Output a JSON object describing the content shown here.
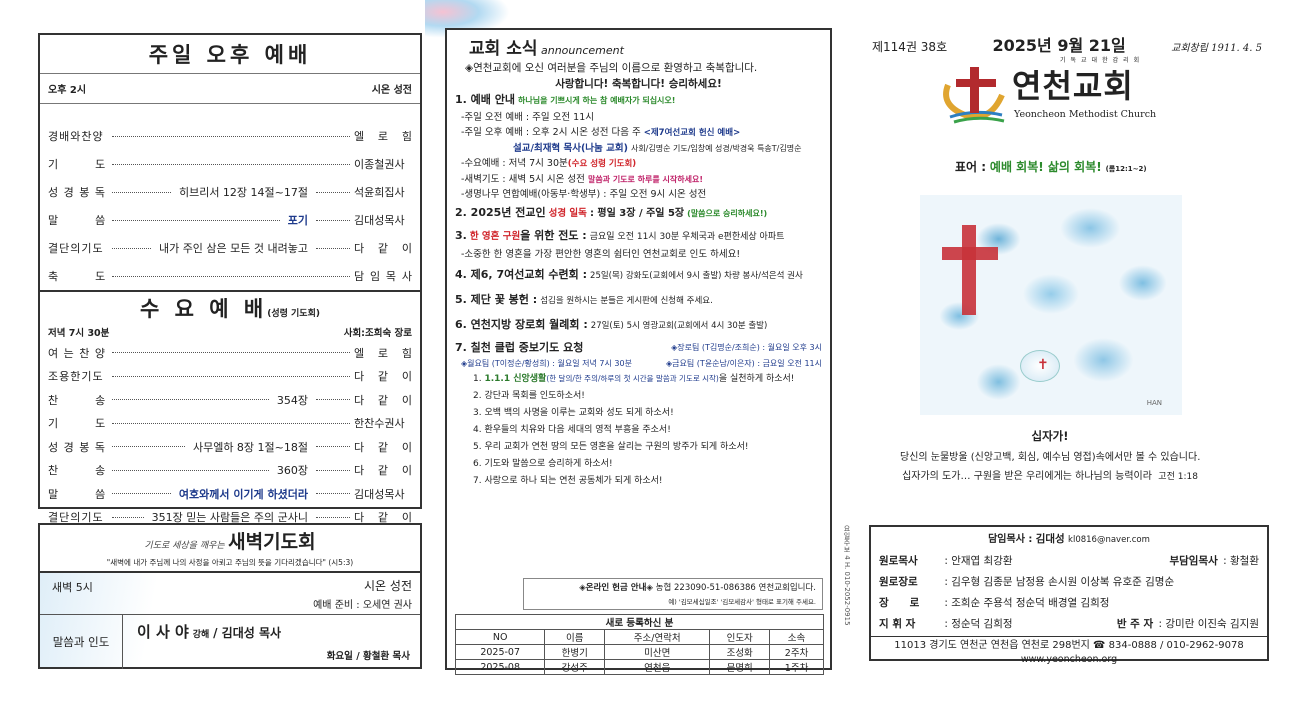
{
  "sunday_pm": {
    "title": "주일 오후 예배",
    "time": "오후 2시",
    "place": "시온 성전",
    "rows": [
      {
        "label": "경배와찬양",
        "middle": "",
        "who": "엘 로 힘"
      },
      {
        "label": "기　　　도",
        "middle": "",
        "who": "이종철권사"
      },
      {
        "label": "성 경 봉 독",
        "middle": "히브리서 12장 14절~17절",
        "who": "석윤희집사"
      },
      {
        "label": "말　　　씀",
        "middle": "포기",
        "who": "김대성목사",
        "highlight": true
      },
      {
        "label": "결단의기도",
        "middle": "내가 주인 삼은 모든 것 내려놓고",
        "who": "다 같 이"
      },
      {
        "label": "축　　　도",
        "middle": "",
        "who": "담 임 목 사"
      }
    ]
  },
  "wednesday": {
    "title": "수 요 예 배",
    "subtitle": "(성령 기도회)",
    "time": "저녁 7시 30분",
    "host": "사회:조희숙 장로",
    "rows": [
      {
        "label": "여 는 찬 양",
        "middle": "",
        "who": "엘 로 힘"
      },
      {
        "label": "조용한기도",
        "middle": "",
        "who": "다 같 이"
      },
      {
        "label": "찬　　　송",
        "middle": "354장",
        "who": "다 같 이"
      },
      {
        "label": "기　　　도",
        "middle": "",
        "who": "한찬수권사"
      },
      {
        "label": "성 경 봉 독",
        "middle": "사무엘하 8장 1절~18절",
        "who": "다 같 이"
      },
      {
        "label": "찬　　　송",
        "middle": "360장",
        "who": "다 같 이"
      },
      {
        "label": "말　　　씀",
        "middle": "여호와께서 이기게 하셨더라",
        "who": "김대성목사",
        "highlight": true
      },
      {
        "label": "결단의기도",
        "middle": "351장 믿는 사람들은 주의 군사니",
        "who": "다 같 이"
      }
    ]
  },
  "dawn": {
    "prefix": "기도로 세상을 깨우는",
    "title": "새벽기도회",
    "verse": "\"새벽에 내가 주님께 나의 사정을 아뢰고 주님의 뜻을 기다리겠습니다\" (시5:3)",
    "time": "새벽 5시",
    "place": "시온 성전",
    "prep": "예배 준비 : 오세연 권사",
    "lead_label": "말씀과 인도",
    "lead_main": "이 사 야",
    "lead_small": "강해",
    "lead_sep": "/ 김대성 목사",
    "tuesday": "화요일 / 황철환 목사"
  },
  "announce": {
    "title": "교회 소식",
    "title_en": "announcement",
    "welcome": "◈연천교회에 오신 여러분을 주님의 이름으로 환영하고 축복합니다.",
    "slogan": "사랑합니다!  축복합니다!  승리하세요!",
    "i1_title": "1. 예배 안내",
    "i1_note": "하나님을 기쁘시게 하는 참 예배자가 되십시오!",
    "i1_a": "-주일 오전 예배 : 주일 오전 11시",
    "i1_b": "-주일 오후 예배 : 오후 2시 시온 성전 다음 주",
    "i1_b_hl": "<제7여선교회 헌신 예배>",
    "i1_c_hl": "설교/최재혁 목사(나눔 교회)",
    "i1_c": "사회/김명순 기도/임창예 성경/박경욱 특송T/김명순",
    "i1_d": "-수요예배 : 저녁 7시 30분",
    "i1_d_hl": "(수요 성령 기도회)",
    "i1_e": "-새벽기도 : 새벽 5시 시온 성전",
    "i1_e_hl": "말씀과 기도로 하루를 시작하세요!",
    "i1_f": "-생명나무 연합예배(아동부·학생부) : 주일 오전 9시 시온 성전",
    "i2_a": "2. 2025년 전교인",
    "i2_hl": "성경 일독",
    "i2_b": ": 평일 3장 / 주일 5장",
    "i2_note": "(말씀으로 승리하세요!)",
    "i3_num": "3.",
    "i3_hl": "한 영혼 구원",
    "i3_a": "을 위한 전도 :",
    "i3_b": "금요일 오전 11시 30분 우체국과 e편한세상 아파트",
    "i3_c": "-소중한 한 영혼을 가장 편안한 영혼의 쉼터인 연천교회로 인도 하세요!",
    "i4_t": "4. 제6, 7여선교회 수련회 :",
    "i4": "25일(목) 강화도(교회에서 9시 출발) 차량 봉사/석은석 권사",
    "i5_t": "5. 제단 꽃 봉헌 :",
    "i5": "섬김을 원하시는 분들은 게시판에 신청해 주세요.",
    "i6_t": "6. 연천지방 장로회 월례회 :",
    "i6": "27일(토) 5시 영광교회(교회에서 4시 30분 출발)",
    "i7_t": "7. 칠천 클럽 중보기도 요청",
    "i7_a": "◈장로팀 (T김명순/조희순) : 월요일 오후 3시",
    "i7_b": "◈월요팀 (T이정순/황성희) : 월요일 저녁 7시 30분",
    "i7_c": "◈금요팀 (T윤순남/이은자) : 금요일 오전 11시",
    "prayers_first_hl": "1.1.1 신앙생활",
    "prayers_first_paren": "(한 달의/한 주의/하루의 첫 시간을 말씀과 기도로 시작)",
    "prayers_first_end": "을 실천하게 하소서!",
    "prayers": [
      "2. 강단과 목회를 인도하소서!",
      "3. 오백 백의 사명을 이루는 교회와 성도 되게 하소서!",
      "4. 환우들의 치유와 다음 세대의 영적 부흥을 주소서!",
      "5. 우리 교회가 연천 땅의 모든 영혼을 살리는 구원의 방주가 되게 하소서!",
      "6. 기도와 말씀으로 승리하게 하소서!",
      "7. 사랑으로 하나 되는 연천 공동체가 되게 하소서!"
    ],
    "offering_label": "◈온라인 헌금 안내◈",
    "offering": "농협 223090-51-086386 연천교회입니다.",
    "offering_note": "예) '김모세십일조' '김모세감사' 형태로 표기해 주세요."
  },
  "newcomers": {
    "title": "새로 등록하신 분",
    "headers": [
      "NO",
      "이름",
      "주소/연락처",
      "인도자",
      "소속"
    ],
    "rows": [
      [
        "2025-07",
        "한병기",
        "미산면",
        "조성화",
        "2주차"
      ],
      [
        "2025-08",
        "강성주",
        "연천읍",
        "문명희",
        "1주차"
      ]
    ]
  },
  "cover": {
    "volume": "제114권 38호",
    "date": "2025년 9월 21일",
    "founded": "교회창립 1911. 4. 5",
    "logo_top": "기독교대한감리회",
    "logo_name": "연천교회",
    "logo_en": "Yeoncheon Methodist Church",
    "motto_label": "표어 :",
    "motto": "예배 회복! 삶의 회복!",
    "motto_ref": "(롬12:1~2)",
    "image_signature": "HAN",
    "caption_title": "십자가!",
    "caption_1": "당신의 눈물방울 (신앙고백, 회심, 예수님 영접)속에서만 볼 수 있습니다.",
    "caption_2": "십자가의 도가… 구원을 받은 우리에게는 하나님의 능력이라",
    "caption_ref": "고전 1:18",
    "side_text": "요일주보 4 H. 010-2052-0915"
  },
  "staff": {
    "senior_label": "담임목사 :",
    "senior": "김대성",
    "email": "kl0816@naver.com",
    "rows": [
      {
        "label": "원로목사",
        "value": "안재엽 최강환",
        "label2": "부담임목사",
        "value2": "황철환"
      },
      {
        "label": "원로장로",
        "value": "김우형 김종문 남정용 손시원 이상복 유호준 김명순"
      },
      {
        "label": "장　　로",
        "value": "조희순 주용석 정순덕 배경열 김희정"
      },
      {
        "label": "지 휘 자",
        "value": "정순덕 김희정",
        "label2": "반 주 자",
        "value2": "강미란 이진숙 김지원"
      }
    ],
    "address": "11013 경기도 연천군 연천읍 연천로 298번지 ☎ 834-0888 / 010-2962-9078",
    "website": "www.yeoncheon.org"
  },
  "colors": {
    "highlight_blue": "#1f3b8c",
    "red": "#d0252b",
    "green": "#2c8a2c",
    "magenta": "#c0246a"
  }
}
